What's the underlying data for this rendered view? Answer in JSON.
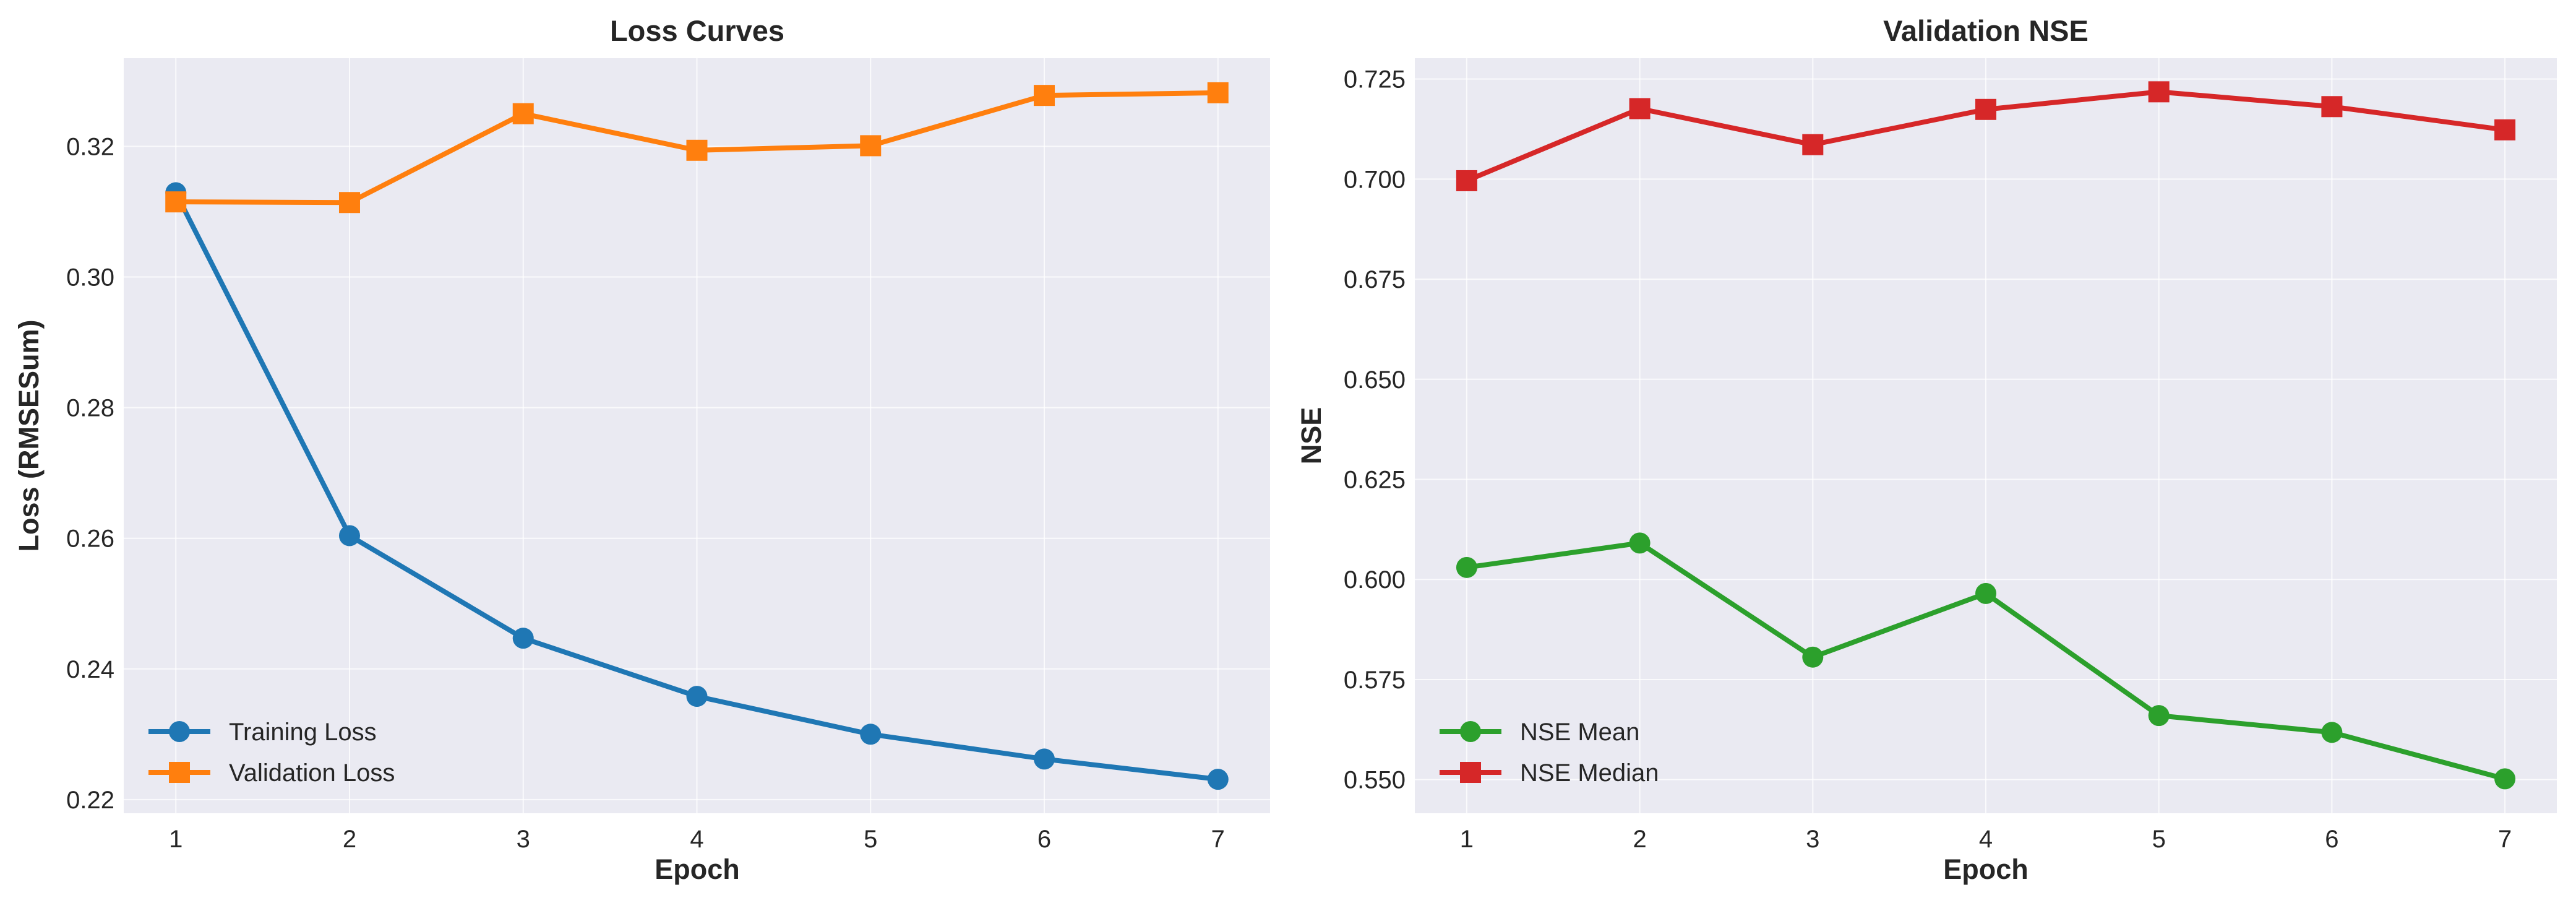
{
  "chart_data": [
    {
      "type": "line",
      "title": "Loss Curves",
      "xlabel": "Epoch",
      "ylabel": "Loss (RMSESum)",
      "x": [
        1,
        2,
        3,
        4,
        5,
        6,
        7
      ],
      "xticks": [
        "1",
        "2",
        "3",
        "4",
        "5",
        "6",
        "7"
      ],
      "yticks": [
        "0.22",
        "0.24",
        "0.26",
        "0.28",
        "0.30",
        "0.32"
      ],
      "xlim": [
        0.7,
        7.3
      ],
      "ylim": [
        0.2179,
        0.3335
      ],
      "grid": true,
      "legend_placement": "lower-left",
      "series": [
        {
          "name": "Training Loss",
          "color": "#1f77b4",
          "marker": "circle",
          "values": [
            0.3129,
            0.2604,
            0.2447,
            0.2358,
            0.23,
            0.2262,
            0.2231
          ]
        },
        {
          "name": "Validation Loss",
          "color": "#ff7f0e",
          "marker": "square",
          "values": [
            0.3115,
            0.3114,
            0.325,
            0.3194,
            0.3201,
            0.3278,
            0.3282
          ]
        }
      ]
    },
    {
      "type": "line",
      "title": "Validation NSE",
      "xlabel": "Epoch",
      "ylabel": "NSE",
      "x": [
        1,
        2,
        3,
        4,
        5,
        6,
        7
      ],
      "xticks": [
        "1",
        "2",
        "3",
        "4",
        "5",
        "6",
        "7"
      ],
      "yticks": [
        "0.550",
        "0.575",
        "0.600",
        "0.625",
        "0.650",
        "0.675",
        "0.700",
        "0.725"
      ],
      "xlim": [
        0.7,
        7.3
      ],
      "ylim": [
        0.5416,
        0.7302
      ],
      "grid": true,
      "legend_placement": "lower-left",
      "series": [
        {
          "name": "NSE Mean",
          "color": "#2ca02c",
          "marker": "circle",
          "values": [
            0.603,
            0.6091,
            0.5806,
            0.5965,
            0.566,
            0.5618,
            0.5502
          ]
        },
        {
          "name": "NSE Median",
          "color": "#d62728",
          "marker": "square",
          "values": [
            0.6996,
            0.7176,
            0.7086,
            0.7174,
            0.7218,
            0.7181,
            0.7123
          ]
        }
      ]
    }
  ],
  "style": {
    "plot_background": "#eaeaf2",
    "grid_color": "#ffffff"
  }
}
